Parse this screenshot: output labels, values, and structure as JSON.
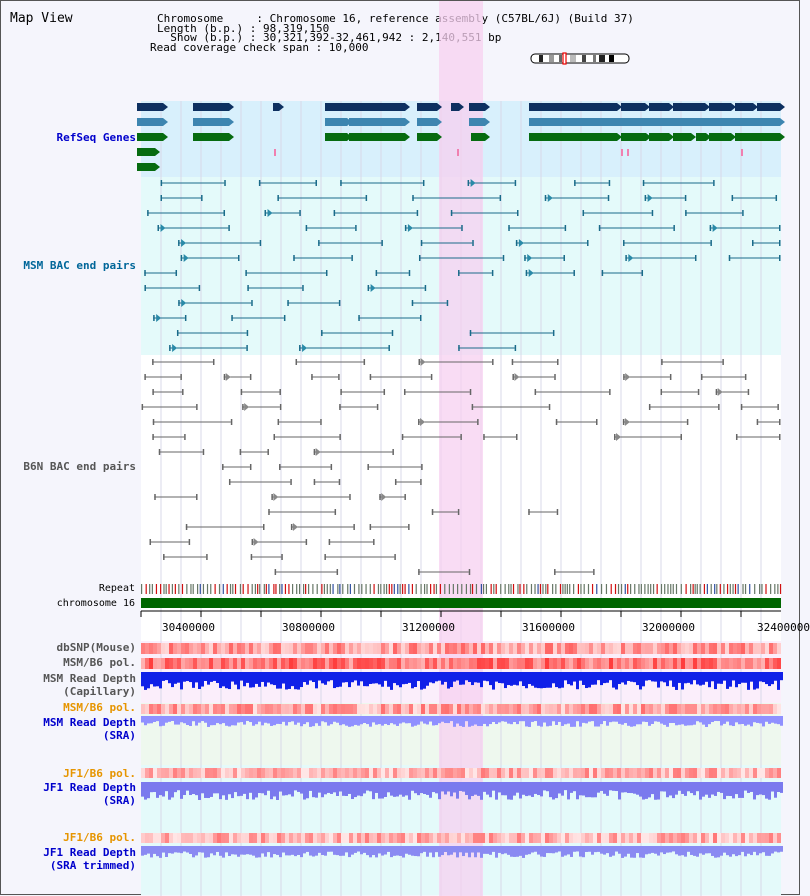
{
  "title": "Map View",
  "header": {
    "chromosome": "Chromosome     : Chromosome 16, reference assembly (C57BL/6J) (Build 37)",
    "length": "Length (b.p.) : 98,319,150",
    "show": "  Show (b.p.) : 30,321,392-32,461,942 : 2,140,551 bp",
    "coverage": "Read coverage check span : 10,000"
  },
  "tracks": {
    "refseq": "RefSeq Genes",
    "msm_bac": "MSM BAC end pairs",
    "b6n_bac": "B6N BAC end pairs",
    "repeat": "Repeat",
    "chromosome": "chromosome 16",
    "dbsnp": "dbSNP(Mouse)",
    "msm_b6_pol_1": "MSM/B6 pol.",
    "msm_read_depth_cap_1": "MSM Read Depth",
    "msm_read_depth_cap_2": "(Capillary)",
    "msm_b6_pol_2": "MSM/B6 pol.",
    "msm_read_depth_sra_1": "MSM Read Depth",
    "msm_read_depth_sra_2": "(SRA)",
    "jf1_b6_pol_1": "JF1/B6 pol.",
    "jf1_read_depth_sra_1": "JF1 Read Depth",
    "jf1_read_depth_sra_2": "(SRA)",
    "jf1_b6_pol_2": "JF1/B6 pol.",
    "jf1_read_depth_trim_1": "JF1 Read Depth",
    "jf1_read_depth_trim_2": "(SRA trimmed)"
  },
  "axis_ticks": [
    "30400000",
    "30800000",
    "31200000",
    "31600000",
    "32000000",
    "32400000"
  ],
  "colors": {
    "refseq_label": "#0000cc",
    "msm_label": "#006699",
    "b6n_label": "#555555",
    "orange_label": "#e69500",
    "blue_label": "#0000cc",
    "highlight": "#f7d0f0",
    "chromosome_bar": "#006600"
  }
}
